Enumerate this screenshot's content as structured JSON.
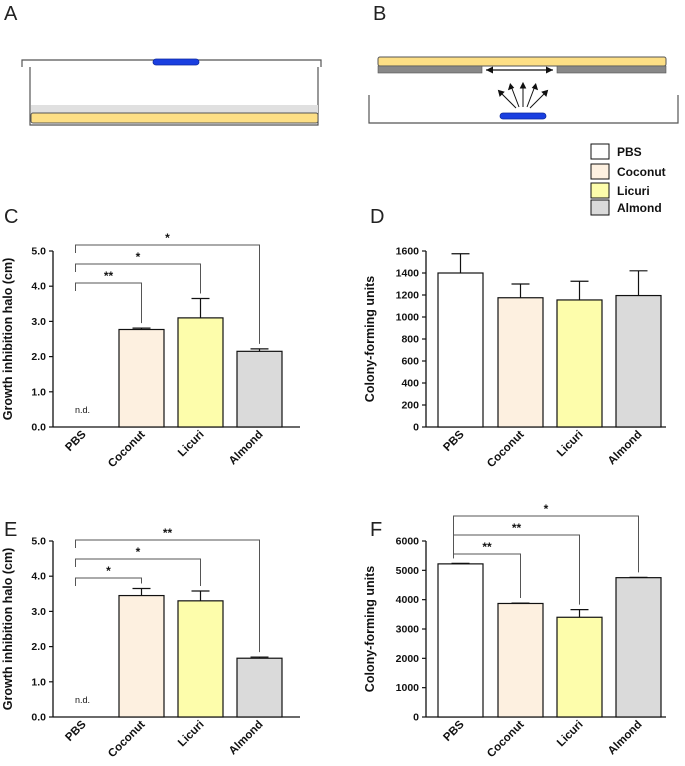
{
  "panels": {
    "A": "A",
    "B": "B",
    "C": "C",
    "D": "D",
    "E": "E",
    "F": "F"
  },
  "colors": {
    "PBS": "#ffffff",
    "Coconut": "#fdf0e0",
    "Licuri": "#fdfdab",
    "Almond": "#dadada",
    "agar": "#fddf85",
    "disk": "#1a3fe0",
    "membrane": "#888888",
    "layer": "#e0e0e0"
  },
  "legend": [
    {
      "label": "PBS",
      "key": "PBS"
    },
    {
      "label": "Coconut",
      "key": "Coconut"
    },
    {
      "label": "Licuri",
      "key": "Licuri"
    },
    {
      "label": "Almond",
      "key": "Almond"
    }
  ],
  "chart_data": [
    {
      "id": "C",
      "type": "bar",
      "categories": [
        "PBS",
        "Coconut",
        "Licuri",
        "Almond"
      ],
      "values": [
        0,
        2.77,
        3.1,
        2.15
      ],
      "errors": [
        0,
        0.04,
        0.55,
        0.07
      ],
      "ylabel": "Growth inhibition halo (cm)",
      "ylim": [
        0,
        5
      ],
      "yticks": [
        0,
        1,
        2,
        3,
        4,
        5
      ],
      "tick_decimals": 1,
      "annotations": [
        {
          "text": "n.d.",
          "category": "PBS"
        }
      ],
      "significance": [
        {
          "from": "PBS",
          "to": "Coconut",
          "label": "**"
        },
        {
          "from": "PBS",
          "to": "Licuri",
          "label": "*"
        },
        {
          "from": "PBS",
          "to": "Almond",
          "label": "*"
        }
      ]
    },
    {
      "id": "D",
      "type": "bar",
      "categories": [
        "PBS",
        "Coconut",
        "Licuri",
        "Almond"
      ],
      "values": [
        1400,
        1175,
        1155,
        1195
      ],
      "errors": [
        175,
        125,
        170,
        225
      ],
      "ylabel": "Colony-forming units",
      "ylim": [
        0,
        1600
      ],
      "yticks": [
        0,
        200,
        400,
        600,
        800,
        1000,
        1200,
        1400,
        1600
      ],
      "tick_decimals": 0,
      "annotations": [],
      "significance": []
    },
    {
      "id": "E",
      "type": "bar",
      "categories": [
        "PBS",
        "Coconut",
        "Licuri",
        "Almond"
      ],
      "values": [
        0,
        3.45,
        3.3,
        1.67
      ],
      "errors": [
        0,
        0.2,
        0.28,
        0.03
      ],
      "ylabel": "Growth inhibition halo (cm)",
      "ylim": [
        0,
        5
      ],
      "yticks": [
        0,
        1,
        2,
        3,
        4,
        5
      ],
      "tick_decimals": 1,
      "annotations": [
        {
          "text": "n.d.",
          "category": "PBS"
        }
      ],
      "significance": [
        {
          "from": "PBS",
          "to": "Coconut",
          "label": "*"
        },
        {
          "from": "PBS",
          "to": "Licuri",
          "label": "*"
        },
        {
          "from": "PBS",
          "to": "Almond",
          "label": "**"
        }
      ]
    },
    {
      "id": "F",
      "type": "bar",
      "categories": [
        "PBS",
        "Coconut",
        "Licuri",
        "Almond"
      ],
      "values": [
        5220,
        3870,
        3400,
        4750
      ],
      "errors": [
        20,
        15,
        260,
        10
      ],
      "ylabel": "Colony-forming units",
      "ylim": [
        0,
        6000
      ],
      "yticks": [
        0,
        1000,
        2000,
        3000,
        4000,
        5000,
        6000
      ],
      "tick_decimals": 0,
      "annotations": [],
      "significance": [
        {
          "from": "PBS",
          "to": "Coconut",
          "label": "**"
        },
        {
          "from": "PBS",
          "to": "Licuri",
          "label": "**"
        },
        {
          "from": "PBS",
          "to": "Almond",
          "label": "*"
        }
      ]
    }
  ]
}
